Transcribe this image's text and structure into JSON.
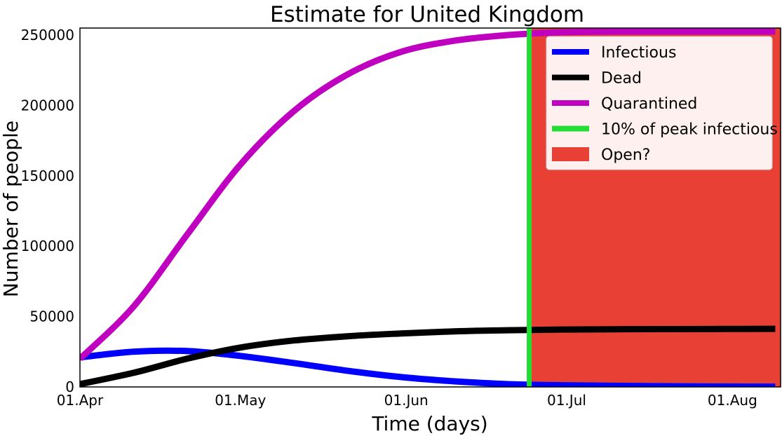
{
  "chart_data": {
    "type": "line",
    "title": "Estimate for United Kingdom",
    "xlabel": "Time (days)",
    "ylabel": "Number of people",
    "x_ticks": [
      {
        "day": 0,
        "label": "01.Apr"
      },
      {
        "day": 30,
        "label": "01.May"
      },
      {
        "day": 61,
        "label": "01.Jun"
      },
      {
        "day": 91,
        "label": "01.Jul"
      },
      {
        "day": 122,
        "label": "01.Aug"
      }
    ],
    "xlim": [
      "2020-04-01",
      "2020-08-10"
    ],
    "y_ticks": [
      0,
      50000,
      100000,
      150000,
      200000,
      250000
    ],
    "ylim": [
      0,
      255000
    ],
    "grid": false,
    "legend_position": "top-right",
    "series": [
      {
        "name": "Infectious",
        "color": "#0000ff",
        "x": [
          "2020-04-01",
          "2020-04-11",
          "2020-04-21",
          "2020-05-01",
          "2020-05-11",
          "2020-05-21",
          "2020-05-31",
          "2020-06-10",
          "2020-06-20",
          "2020-06-30",
          "2020-07-10",
          "2020-07-20",
          "2020-07-30",
          "2020-08-09"
        ],
        "values": [
          21000,
          25000,
          25500,
          22000,
          17000,
          11500,
          7000,
          4000,
          2000,
          1200,
          800,
          500,
          300,
          200
        ]
      },
      {
        "name": "Dead",
        "color": "#000000",
        "x": [
          "2020-04-01",
          "2020-04-11",
          "2020-04-21",
          "2020-05-01",
          "2020-05-11",
          "2020-05-21",
          "2020-05-31",
          "2020-06-10",
          "2020-06-20",
          "2020-06-30",
          "2020-07-10",
          "2020-07-20",
          "2020-07-30",
          "2020-08-09"
        ],
        "values": [
          2000,
          10000,
          20000,
          28000,
          33000,
          36000,
          38000,
          39500,
          40300,
          40800,
          41000,
          41100,
          41200,
          41300
        ]
      },
      {
        "name": "Quarantined",
        "color": "#c000c0",
        "x": [
          "2020-04-01",
          "2020-04-11",
          "2020-04-21",
          "2020-05-01",
          "2020-05-11",
          "2020-05-21",
          "2020-05-31",
          "2020-06-10",
          "2020-06-20",
          "2020-06-30",
          "2020-07-10",
          "2020-07-20",
          "2020-07-30",
          "2020-08-09"
        ],
        "values": [
          20000,
          57000,
          108000,
          158000,
          196000,
          222000,
          238000,
          246000,
          250000,
          252000,
          252500,
          252500,
          252500,
          252500
        ]
      }
    ],
    "vertical_line": {
      "name": "10% of peak infectious",
      "color": "#22dd33",
      "x": "2020-06-24"
    },
    "shaded_region": {
      "name": "Open?",
      "color": "#e84035",
      "x_start": "2020-06-24",
      "x_end": "2020-08-10"
    }
  }
}
